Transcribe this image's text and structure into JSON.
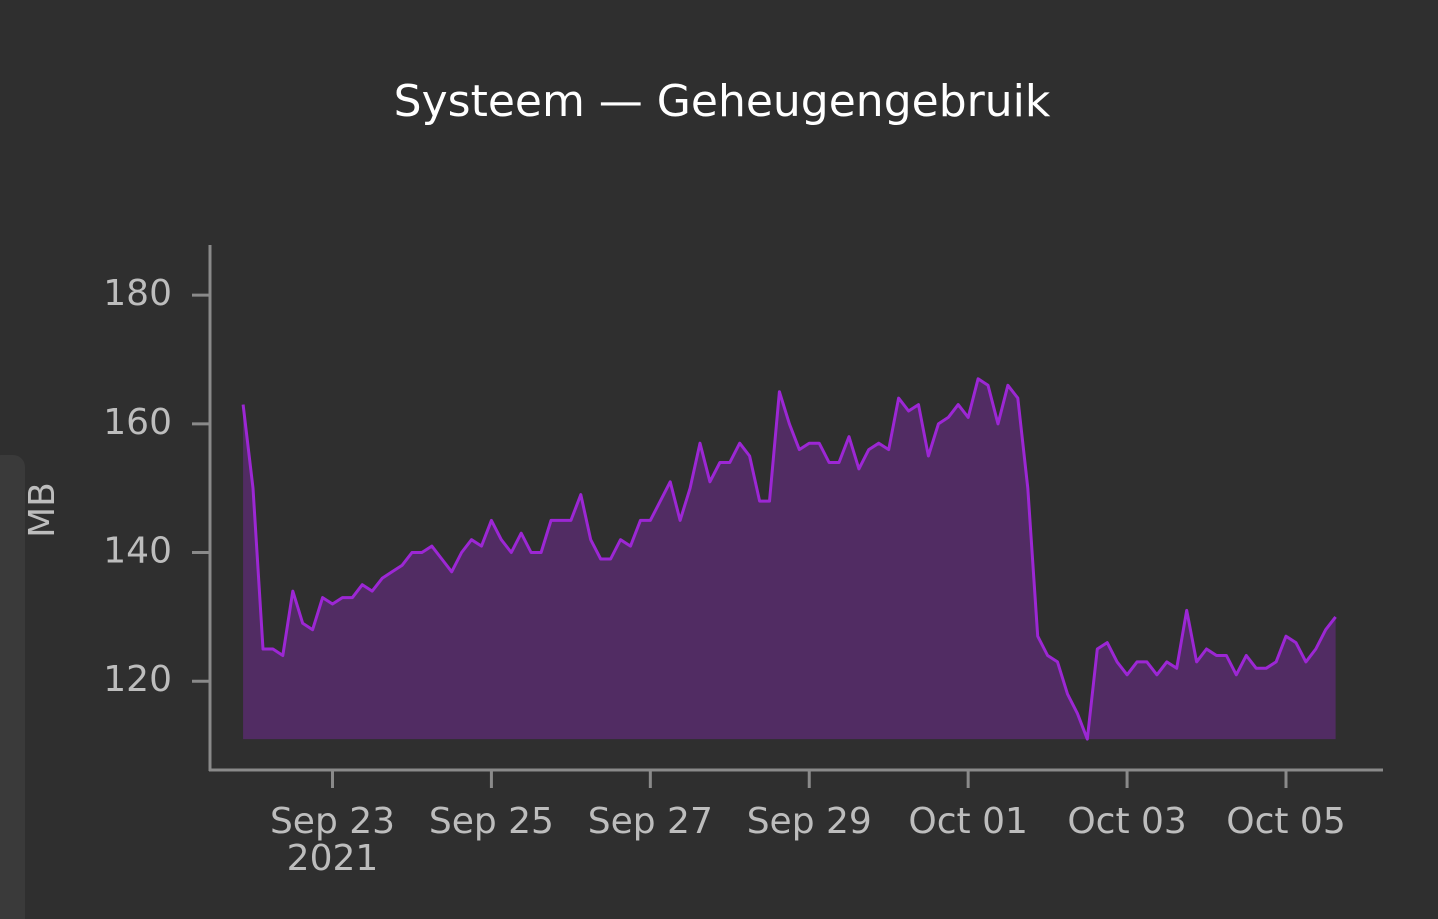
{
  "chart_data": {
    "type": "area",
    "title": "Systeem — Geheugengebruik",
    "y_label": "MB",
    "x": [
      "2021-09-21 21:00",
      "2021-09-22 00:00",
      "2021-09-22 03:00",
      "2021-09-22 06:00",
      "2021-09-22 09:00",
      "2021-09-22 12:00",
      "2021-09-22 15:00",
      "2021-09-22 18:00",
      "2021-09-22 21:00",
      "2021-09-23 00:00",
      "2021-09-23 03:00",
      "2021-09-23 06:00",
      "2021-09-23 09:00",
      "2021-09-23 12:00",
      "2021-09-23 15:00",
      "2021-09-23 18:00",
      "2021-09-23 21:00",
      "2021-09-24 00:00",
      "2021-09-24 03:00",
      "2021-09-24 06:00",
      "2021-09-24 09:00",
      "2021-09-24 12:00",
      "2021-09-24 15:00",
      "2021-09-24 18:00",
      "2021-09-24 21:00",
      "2021-09-25 00:00",
      "2021-09-25 03:00",
      "2021-09-25 06:00",
      "2021-09-25 09:00",
      "2021-09-25 12:00",
      "2021-09-25 15:00",
      "2021-09-25 18:00",
      "2021-09-25 21:00",
      "2021-09-26 00:00",
      "2021-09-26 03:00",
      "2021-09-26 06:00",
      "2021-09-26 09:00",
      "2021-09-26 12:00",
      "2021-09-26 15:00",
      "2021-09-26 18:00",
      "2021-09-26 21:00",
      "2021-09-27 00:00",
      "2021-09-27 03:00",
      "2021-09-27 06:00",
      "2021-09-27 09:00",
      "2021-09-27 12:00",
      "2021-09-27 15:00",
      "2021-09-27 18:00",
      "2021-09-27 21:00",
      "2021-09-28 00:00",
      "2021-09-28 03:00",
      "2021-09-28 06:00",
      "2021-09-28 09:00",
      "2021-09-28 12:00",
      "2021-09-28 15:00",
      "2021-09-28 18:00",
      "2021-09-28 21:00",
      "2021-09-29 00:00",
      "2021-09-29 03:00",
      "2021-09-29 06:00",
      "2021-09-29 09:00",
      "2021-09-29 12:00",
      "2021-09-29 15:00",
      "2021-09-29 18:00",
      "2021-09-29 21:00",
      "2021-09-30 00:00",
      "2021-09-30 03:00",
      "2021-09-30 06:00",
      "2021-09-30 09:00",
      "2021-09-30 12:00",
      "2021-09-30 15:00",
      "2021-09-30 18:00",
      "2021-09-30 21:00",
      "2021-10-01 00:00",
      "2021-10-01 03:00",
      "2021-10-01 06:00",
      "2021-10-01 09:00",
      "2021-10-01 12:00",
      "2021-10-01 15:00",
      "2021-10-01 18:00",
      "2021-10-01 21:00",
      "2021-10-02 00:00",
      "2021-10-02 03:00",
      "2021-10-02 06:00",
      "2021-10-02 09:00",
      "2021-10-02 12:00",
      "2021-10-02 15:00",
      "2021-10-02 18:00",
      "2021-10-02 21:00",
      "2021-10-03 00:00",
      "2021-10-03 03:00",
      "2021-10-03 06:00",
      "2021-10-03 09:00",
      "2021-10-03 12:00",
      "2021-10-03 15:00",
      "2021-10-03 18:00",
      "2021-10-03 21:00",
      "2021-10-04 00:00",
      "2021-10-04 03:00",
      "2021-10-04 06:00",
      "2021-10-04 09:00",
      "2021-10-04 12:00",
      "2021-10-04 15:00",
      "2021-10-04 18:00",
      "2021-10-04 21:00",
      "2021-10-05 00:00",
      "2021-10-05 03:00",
      "2021-10-05 06:00",
      "2021-10-05 09:00",
      "2021-10-05 12:00",
      "2021-10-05 15:00"
    ],
    "values": [
      163,
      150,
      125,
      125,
      124,
      134,
      129,
      128,
      133,
      132,
      133,
      133,
      135,
      134,
      136,
      137,
      138,
      140,
      140,
      141,
      139,
      137,
      140,
      142,
      141,
      145,
      142,
      140,
      143,
      140,
      140,
      145,
      145,
      145,
      149,
      142,
      139,
      139,
      142,
      141,
      145,
      145,
      148,
      151,
      145,
      150,
      157,
      151,
      154,
      154,
      157,
      155,
      148,
      148,
      165,
      160,
      156,
      157,
      157,
      154,
      154,
      158,
      153,
      156,
      157,
      156,
      164,
      162,
      163,
      155,
      160,
      161,
      163,
      161,
      167,
      166,
      160,
      166,
      164,
      150,
      127,
      124,
      123,
      118,
      115,
      111,
      125,
      126,
      123,
      121,
      123,
      123,
      121,
      123,
      122,
      131,
      123,
      125,
      124,
      124,
      121,
      124,
      122,
      122,
      123,
      127,
      126,
      123,
      125,
      128,
      130
    ],
    "color": "#9c27d4",
    "xlim": [
      "2021-09-21 11:00",
      "2021-10-06 05:00"
    ],
    "xticks": [
      {
        "value": "2021-09-23 00:00",
        "label": "Sep 23"
      },
      {
        "value": "2021-09-25 00:00",
        "label": "Sep 25"
      },
      {
        "value": "2021-09-27 00:00",
        "label": "Sep 27"
      },
      {
        "value": "2021-09-29 00:00",
        "label": "Sep 29"
      },
      {
        "value": "2021-10-01 00:00",
        "label": "Oct 01"
      },
      {
        "value": "2021-10-03 00:00",
        "label": "Oct 03"
      },
      {
        "value": "2021-10-05 00:00",
        "label": "Oct 05"
      }
    ],
    "x_year_label": "2021",
    "ylim": [
      106.2,
      187.8
    ],
    "yticks": [
      120,
      140,
      160,
      180
    ],
    "grid": false
  }
}
